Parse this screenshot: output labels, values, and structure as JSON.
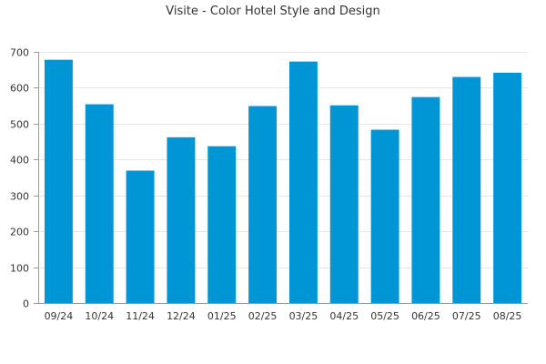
{
  "chart_data": {
    "type": "bar",
    "title": "Visite - Color Hotel Style and Design",
    "xlabel": "",
    "ylabel": "",
    "categories": [
      "09/24",
      "10/24",
      "11/24",
      "12/24",
      "01/25",
      "02/25",
      "03/25",
      "04/25",
      "05/25",
      "06/25",
      "07/25",
      "08/25"
    ],
    "values": [
      678,
      554,
      369,
      462,
      437,
      549,
      673,
      551,
      483,
      574,
      630,
      642
    ],
    "ylim": [
      0,
      700
    ],
    "yticks": [
      0,
      100,
      200,
      300,
      400,
      500,
      600,
      700
    ],
    "grid": true,
    "legend": "none",
    "colors": {
      "bar": "#0095d5",
      "grid": "#e6e6e6",
      "axis": "#999999",
      "text": "#333333"
    }
  }
}
